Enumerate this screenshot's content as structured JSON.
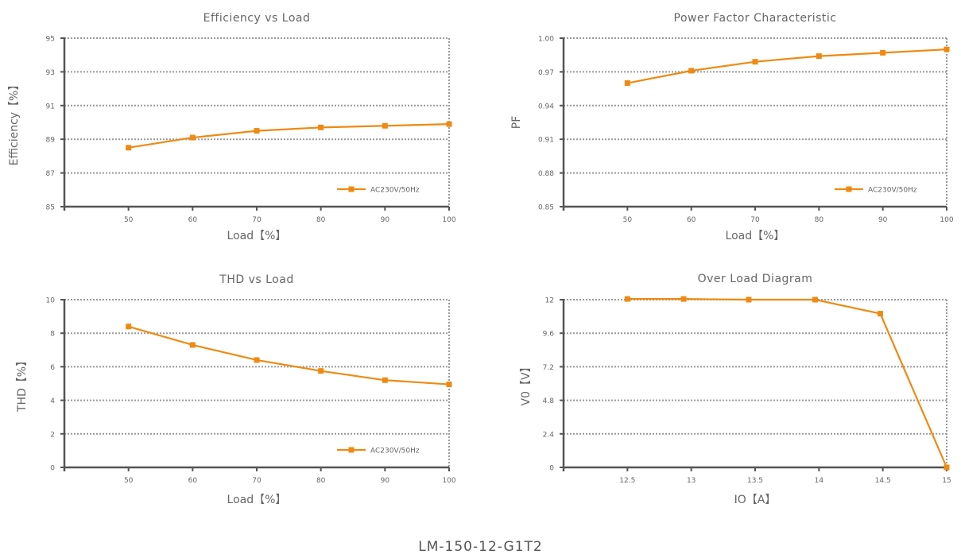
{
  "footer": "LM-150-12-G1T2",
  "colors": {
    "series": "#EE8A12",
    "axis": "#555555",
    "grid": "#9a9a9a",
    "text": "#666666"
  },
  "chart_data": [
    {
      "type": "line",
      "title": "Efficiency vs Load",
      "xlabel": "Load【%】",
      "ylabel": "Efficiency【%】",
      "xlim": [
        40,
        100
      ],
      "ylim": [
        85,
        95
      ],
      "xticks": [
        50,
        60,
        70,
        80,
        90,
        100
      ],
      "xtick_labels": [
        "50",
        "60",
        "70",
        "80",
        "90",
        "100"
      ],
      "yticks": [
        85,
        87,
        89,
        91,
        93,
        95
      ],
      "ytick_labels": [
        "85",
        "87",
        "89",
        "91",
        "93",
        "95"
      ],
      "grid": true,
      "legend": "bottom-right",
      "series": [
        {
          "name": "AC230V/50Hz",
          "x": [
            50,
            60,
            70,
            80,
            90,
            100
          ],
          "y": [
            88.5,
            89.1,
            89.5,
            89.7,
            89.8,
            89.9
          ]
        }
      ]
    },
    {
      "type": "line",
      "title": "Power Factor Characteristic",
      "xlabel": "Load【%】",
      "ylabel": "PF",
      "xlim": [
        40,
        100
      ],
      "ylim": [
        0.85,
        1.0
      ],
      "xticks": [
        50,
        60,
        70,
        80,
        90,
        100
      ],
      "xtick_labels": [
        "50",
        "60",
        "70",
        "80",
        "90",
        "100"
      ],
      "yticks": [
        0.85,
        0.88,
        0.91,
        0.94,
        0.97,
        1.0
      ],
      "ytick_labels": [
        "0.85",
        "0.88",
        "0.91",
        "0.94",
        "0.97",
        "1.00"
      ],
      "grid": true,
      "legend": "bottom-right",
      "series": [
        {
          "name": "AC230V/50Hz",
          "x": [
            50,
            60,
            70,
            80,
            90,
            100
          ],
          "y": [
            0.96,
            0.971,
            0.979,
            0.984,
            0.987,
            0.99
          ]
        }
      ]
    },
    {
      "type": "line",
      "title": "THD vs Load",
      "xlabel": "Load【%】",
      "ylabel": "THD【%】",
      "xlim": [
        40,
        100
      ],
      "ylim": [
        0,
        10
      ],
      "xticks": [
        50,
        60,
        70,
        80,
        90,
        100
      ],
      "xtick_labels": [
        "50",
        "60",
        "70",
        "80",
        "90",
        "100"
      ],
      "yticks": [
        0,
        2,
        4,
        6,
        8,
        10
      ],
      "ytick_labels": [
        "0",
        "2",
        "4",
        "6",
        "8",
        "10"
      ],
      "grid": true,
      "legend": "bottom-right",
      "series": [
        {
          "name": "AC230V/50Hz",
          "x": [
            50,
            60,
            70,
            80,
            90,
            100
          ],
          "y": [
            8.4,
            7.3,
            6.4,
            5.75,
            5.2,
            4.95
          ]
        }
      ]
    },
    {
      "type": "line",
      "title": "Over Load Diagram",
      "xlabel": "IO【A】",
      "ylabel": "V0【V】",
      "xlim": [
        12,
        15
      ],
      "ylim": [
        0,
        12
      ],
      "xticks": [
        12.5,
        13,
        13.5,
        14,
        14.5,
        15
      ],
      "xtick_labels": [
        "12.5",
        "13",
        "13.5",
        "14",
        "14.5",
        "15"
      ],
      "yticks": [
        0,
        2.4,
        4.8,
        7.2,
        9.6,
        12
      ],
      "ytick_labels": [
        "0",
        "2.4",
        "4.8",
        "7.2",
        "9.6",
        "12"
      ],
      "grid": true,
      "legend": "none",
      "series": [
        {
          "x": [
            12.5,
            12.94,
            13.45,
            13.97,
            14.48,
            15
          ],
          "y": [
            12.05,
            12.05,
            12.0,
            12.0,
            11.0,
            0
          ]
        }
      ]
    }
  ]
}
